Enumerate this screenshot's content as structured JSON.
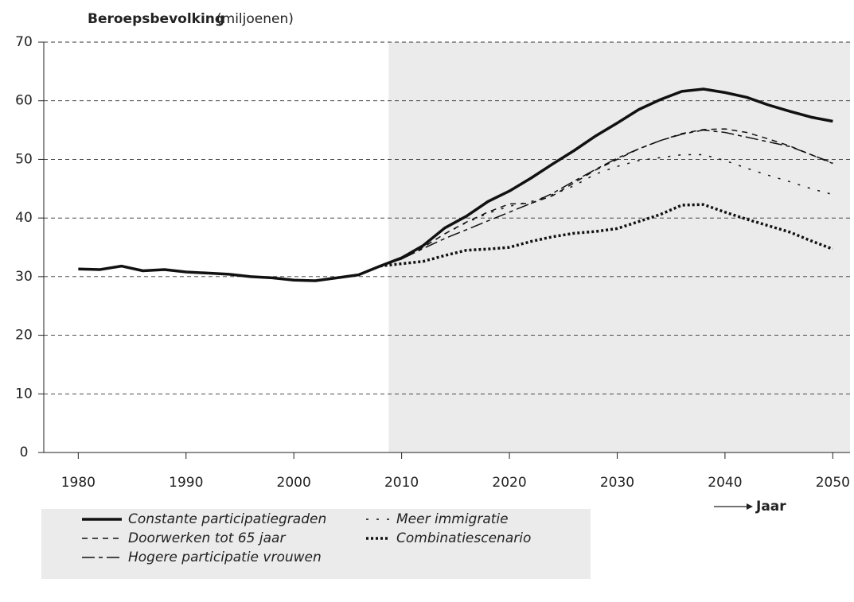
{
  "chart_data": {
    "type": "line",
    "title": "Beroepsbevolking",
    "ylabel": "(miljoenen)",
    "xlabel": "Jaar",
    "x": [
      1980,
      1982,
      1984,
      1986,
      1988,
      1990,
      1992,
      1994,
      1996,
      1998,
      2000,
      2002,
      2004,
      2006,
      2008,
      2010,
      2012,
      2014,
      2016,
      2018,
      2020,
      2022,
      2024,
      2026,
      2028,
      2030,
      2032,
      2034,
      2036,
      2038,
      2040,
      2042,
      2044,
      2046,
      2048,
      2050
    ],
    "series": [
      {
        "name": "Constante participatiegraden",
        "color": "#111111",
        "linestyle": "solid",
        "linewidth": 3.5,
        "values": [
          31.3,
          31.2,
          31.8,
          31.0,
          31.2,
          30.8,
          30.6,
          30.4,
          30.0,
          29.8,
          29.4,
          29.3,
          29.8,
          30.3,
          31.8,
          33.2,
          35.3,
          38.3,
          40.3,
          42.8,
          44.6,
          46.8,
          49.2,
          51.5,
          54.0,
          56.2,
          58.5,
          60.2,
          61.6,
          62.0,
          61.4,
          60.6,
          59.3,
          58.2,
          57.2,
          56.5
        ]
      },
      {
        "name": "Doorwerken tot 65 jaar",
        "color": "#111111",
        "linestyle": "dashed",
        "linewidth": 1.5,
        "values": [
          null,
          null,
          null,
          null,
          null,
          null,
          null,
          null,
          null,
          null,
          null,
          null,
          null,
          null,
          31.8,
          33.0,
          35.0,
          37.3,
          39.3,
          41.0,
          42.4,
          42.5,
          43.8,
          46.0,
          48.2,
          50.0,
          51.8,
          53.2,
          54.4,
          55.1,
          55.2,
          54.6,
          53.5,
          52.3,
          50.8,
          49.3
        ]
      },
      {
        "name": "Hogere participatie vrouwen",
        "color": "#111111",
        "linestyle": "dashdot",
        "linewidth": 1.5,
        "values": [
          null,
          null,
          null,
          null,
          null,
          null,
          null,
          null,
          null,
          null,
          null,
          null,
          null,
          null,
          31.8,
          33.0,
          34.8,
          36.5,
          38.0,
          39.5,
          41.0,
          42.5,
          44.2,
          46.3,
          48.3,
          50.2,
          51.8,
          53.2,
          54.3,
          55.0,
          54.6,
          53.8,
          53.0,
          52.2,
          50.8,
          49.4
        ]
      },
      {
        "name": "Meer immigratie",
        "color": "#111111",
        "linestyle": "sparse-dotted",
        "linewidth": 1.5,
        "values": [
          null,
          null,
          null,
          null,
          null,
          null,
          null,
          null,
          null,
          null,
          null,
          null,
          null,
          null,
          31.8,
          33.0,
          35.0,
          37.3,
          39.2,
          40.8,
          42.0,
          42.8,
          44.0,
          45.5,
          47.5,
          48.8,
          49.8,
          50.3,
          50.8,
          50.8,
          49.8,
          48.5,
          47.3,
          46.2,
          45.0,
          44.0
        ]
      },
      {
        "name": "Combinatiescenario",
        "color": "#111111",
        "linestyle": "dotted",
        "linewidth": 3.5,
        "values": [
          null,
          null,
          null,
          null,
          null,
          null,
          null,
          null,
          null,
          null,
          null,
          null,
          null,
          null,
          31.8,
          32.2,
          32.6,
          33.6,
          34.5,
          34.7,
          35.0,
          36.0,
          36.8,
          37.4,
          37.7,
          38.2,
          39.4,
          40.6,
          42.2,
          42.3,
          41.0,
          39.8,
          38.7,
          37.6,
          36.1,
          34.7
        ]
      }
    ],
    "xlim": [
      1976.8,
      2051.6
    ],
    "ylim": [
      0,
      70
    ],
    "xticks": [
      1980,
      1990,
      2000,
      2010,
      2020,
      2030,
      2040,
      2050
    ],
    "yticks": [
      0,
      10,
      20,
      30,
      40,
      50,
      60,
      70
    ],
    "grid": true,
    "shaded_region": [
      2008.8,
      2051.6
    ]
  }
}
